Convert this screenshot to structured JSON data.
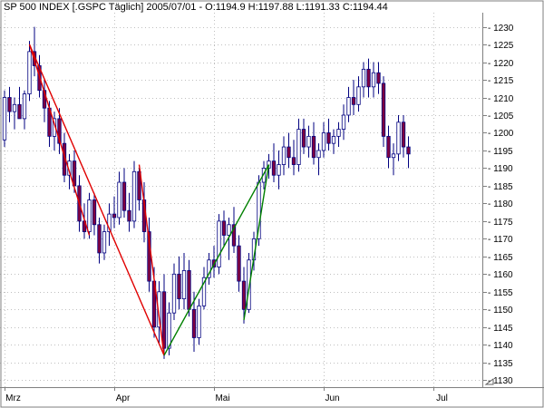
{
  "chart_data": {
    "type": "candlestick",
    "title": "SP 500 INDEX [.GSPC  Täglich] 2005/07/01 - O:1194.9 H:1197.88 L:1191.33 C:1194.44",
    "ylim": [
      1128,
      1234
    ],
    "y_ticks": [
      1130,
      1135,
      1140,
      1145,
      1150,
      1155,
      1160,
      1165,
      1170,
      1175,
      1180,
      1185,
      1190,
      1195,
      1200,
      1205,
      1210,
      1215,
      1220,
      1225,
      1230
    ],
    "x_ticks": [
      {
        "label": "Mrz",
        "index": 0
      },
      {
        "label": "Apr",
        "index": 22
      },
      {
        "label": "Mai",
        "index": 42
      },
      {
        "label": "Jun",
        "index": 64
      },
      {
        "label": "Jul",
        "index": 86
      }
    ],
    "grid": true,
    "colors": {
      "up": "#ffffff",
      "down": "#800040",
      "wick": "#000080",
      "red_line": "#e00000",
      "green_line": "#008000",
      "grid": "#c0c0c0"
    },
    "ohlc": [
      [
        1198,
        1212,
        1196,
        1210
      ],
      [
        1210,
        1213,
        1203,
        1206
      ],
      [
        1206,
        1210,
        1201,
        1208
      ],
      [
        1208,
        1213,
        1204,
        1204
      ],
      [
        1204,
        1212,
        1201,
        1211
      ],
      [
        1211,
        1226,
        1209,
        1223
      ],
      [
        1223,
        1230,
        1216,
        1219
      ],
      [
        1219,
        1222,
        1210,
        1212
      ],
      [
        1212,
        1215,
        1203,
        1207
      ],
      [
        1207,
        1209,
        1196,
        1199
      ],
      [
        1199,
        1206,
        1195,
        1204
      ],
      [
        1204,
        1207,
        1194,
        1197
      ],
      [
        1197,
        1200,
        1186,
        1188
      ],
      [
        1188,
        1194,
        1184,
        1192
      ],
      [
        1192,
        1195,
        1183,
        1185
      ],
      [
        1185,
        1188,
        1172,
        1175
      ],
      [
        1175,
        1180,
        1170,
        1172
      ],
      [
        1172,
        1183,
        1170,
        1181
      ],
      [
        1181,
        1183,
        1171,
        1174
      ],
      [
        1174,
        1176,
        1163,
        1166
      ],
      [
        1166,
        1174,
        1164,
        1172
      ],
      [
        1172,
        1180,
        1168,
        1177
      ],
      [
        1177,
        1182,
        1173,
        1176
      ],
      [
        1176,
        1189,
        1174,
        1186
      ],
      [
        1186,
        1190,
        1176,
        1178
      ],
      [
        1178,
        1183,
        1172,
        1175
      ],
      [
        1175,
        1192,
        1173,
        1189
      ],
      [
        1189,
        1190,
        1178,
        1181
      ],
      [
        1181,
        1186,
        1169,
        1172
      ],
      [
        1172,
        1176,
        1155,
        1158
      ],
      [
        1158,
        1162,
        1142,
        1145
      ],
      [
        1145,
        1158,
        1140,
        1155
      ],
      [
        1155,
        1160,
        1136,
        1139
      ],
      [
        1139,
        1152,
        1137,
        1149
      ],
      [
        1149,
        1163,
        1147,
        1160
      ],
      [
        1160,
        1165,
        1150,
        1153
      ],
      [
        1153,
        1166,
        1150,
        1161
      ],
      [
        1161,
        1164,
        1148,
        1150
      ],
      [
        1150,
        1155,
        1138,
        1142
      ],
      [
        1142,
        1153,
        1140,
        1151
      ],
      [
        1151,
        1162,
        1150,
        1159
      ],
      [
        1159,
        1166,
        1157,
        1164
      ],
      [
        1164,
        1168,
        1159,
        1162
      ],
      [
        1162,
        1177,
        1160,
        1175
      ],
      [
        1175,
        1178,
        1168,
        1171
      ],
      [
        1171,
        1176,
        1164,
        1174
      ],
      [
        1174,
        1179,
        1166,
        1168
      ],
      [
        1168,
        1171,
        1155,
        1158
      ],
      [
        1158,
        1162,
        1146,
        1150
      ],
      [
        1150,
        1166,
        1149,
        1164
      ],
      [
        1164,
        1172,
        1161,
        1170
      ],
      [
        1170,
        1188,
        1168,
        1186
      ],
      [
        1186,
        1192,
        1184,
        1190
      ],
      [
        1190,
        1194,
        1187,
        1192
      ],
      [
        1192,
        1197,
        1186,
        1188
      ],
      [
        1188,
        1195,
        1184,
        1191
      ],
      [
        1191,
        1199,
        1188,
        1196
      ],
      [
        1196,
        1200,
        1190,
        1193
      ],
      [
        1193,
        1198,
        1188,
        1191
      ],
      [
        1191,
        1204,
        1189,
        1201
      ],
      [
        1201,
        1204,
        1194,
        1196
      ],
      [
        1196,
        1202,
        1193,
        1199
      ],
      [
        1199,
        1203,
        1191,
        1193
      ],
      [
        1193,
        1197,
        1188,
        1195
      ],
      [
        1195,
        1203,
        1193,
        1200
      ],
      [
        1200,
        1204,
        1195,
        1197
      ],
      [
        1197,
        1201,
        1194,
        1199
      ],
      [
        1199,
        1203,
        1196,
        1201
      ],
      [
        1201,
        1208,
        1198,
        1205
      ],
      [
        1205,
        1213,
        1203,
        1210
      ],
      [
        1210,
        1215,
        1205,
        1208
      ],
      [
        1208,
        1216,
        1206,
        1213
      ],
      [
        1213,
        1220,
        1210,
        1218
      ],
      [
        1218,
        1221,
        1210,
        1213
      ],
      [
        1213,
        1220,
        1210,
        1217
      ],
      [
        1217,
        1220,
        1211,
        1214
      ],
      [
        1214,
        1216,
        1196,
        1199
      ],
      [
        1199,
        1202,
        1190,
        1193
      ],
      [
        1193,
        1197,
        1188,
        1194
      ],
      [
        1194,
        1205,
        1192,
        1203
      ],
      [
        1203,
        1205,
        1193,
        1196
      ],
      [
        1196,
        1199,
        1190,
        1194
      ]
    ],
    "trend_lines": [
      {
        "color": "red",
        "points": [
          [
            5,
            1225
          ],
          [
            32,
            1137
          ]
        ]
      },
      {
        "color": "red",
        "points": [
          [
            5,
            1225
          ],
          [
            17,
            1171
          ]
        ]
      },
      {
        "color": "red",
        "points": [
          [
            27,
            1191
          ],
          [
            32,
            1137
          ]
        ]
      },
      {
        "color": "green",
        "points": [
          [
            32,
            1137
          ],
          [
            53,
            1191
          ]
        ]
      },
      {
        "color": "green",
        "points": [
          [
            48,
            1147
          ],
          [
            53,
            1191
          ]
        ]
      }
    ]
  }
}
